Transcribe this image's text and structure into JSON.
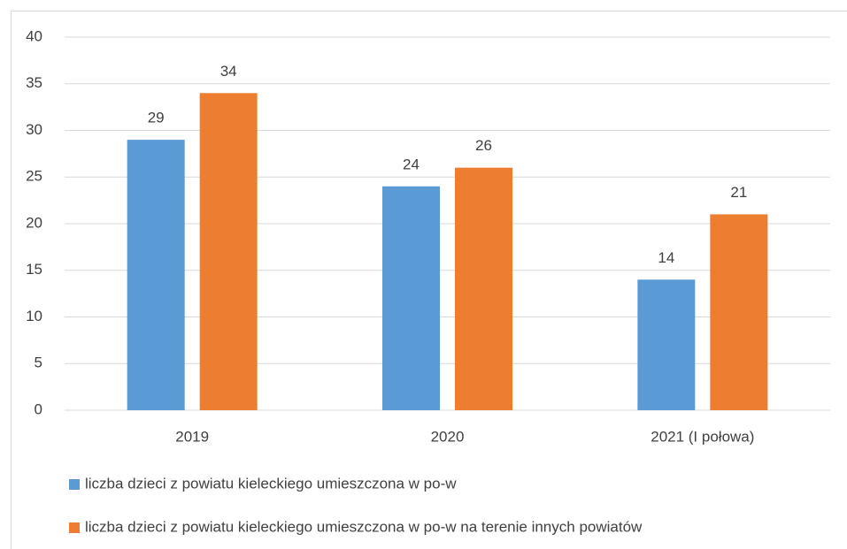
{
  "chart_data": {
    "type": "bar",
    "categories": [
      "2019",
      "2020",
      "2021 (I połowa)"
    ],
    "series": [
      {
        "name": "liczba dzieci z powiatu kieleckiego umieszczona w po-w",
        "color": "#5b9bd5",
        "values": [
          29,
          24,
          14
        ]
      },
      {
        "name": "liczba dzieci z powiatu kieleckiego umieszczona w po-w na terenie innych powiatów",
        "color": "#ed7d31",
        "values": [
          34,
          26,
          21
        ]
      }
    ],
    "ylim": [
      0,
      40
    ],
    "yticks": [
      0,
      5,
      10,
      15,
      20,
      25,
      30,
      35,
      40
    ],
    "grid": true,
    "legend": "bottom",
    "data_labels": true
  }
}
